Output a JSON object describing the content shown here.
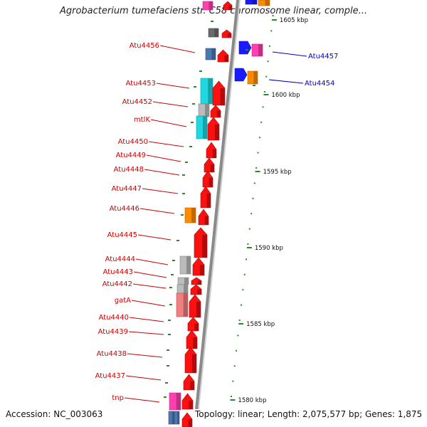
{
  "title": "Agrobacterium tumefaciens str. C58 chromosome linear, comple...",
  "footer": {
    "accession": "Accession: NC_003063",
    "topology": "Topology: linear; Length: 2,075,577 bp; Genes: 1,875"
  },
  "colors": {
    "left_labels": "#cc0000",
    "right_labels": "#0000cc",
    "backbone": "#8a8a8a",
    "tick": "#2a8a2a",
    "red": "#ff1010",
    "magenta": "#ff40b0",
    "cyan": "#20d8e0",
    "gray": "#bbbbbb",
    "orange": "#ff8c00",
    "blue": "#1a1aff",
    "steel": "#4a78b0",
    "pink": "#f08080"
  },
  "scale": {
    "unit": "kbp",
    "tick_labels": [
      "1605 kbp",
      "1600 kbp",
      "1595 kbp",
      "1590 kbp",
      "1585 kbp",
      "1580 kbp"
    ]
  },
  "left_gene_labels": [
    "Atu4456",
    "Atu4453",
    "Atu4452",
    "mtlK",
    "Atu4450",
    "Atu4449",
    "Atu4448",
    "Atu4447",
    "Atu4446",
    "Atu4445",
    "Atu4444",
    "Atu4443",
    "Atu4442",
    "gatA",
    "Atu4440",
    "Atu4439",
    "Atu4438",
    "Atu4437",
    "tnp"
  ],
  "right_gene_labels": [
    "Atu4457",
    "Atu4454"
  ]
}
